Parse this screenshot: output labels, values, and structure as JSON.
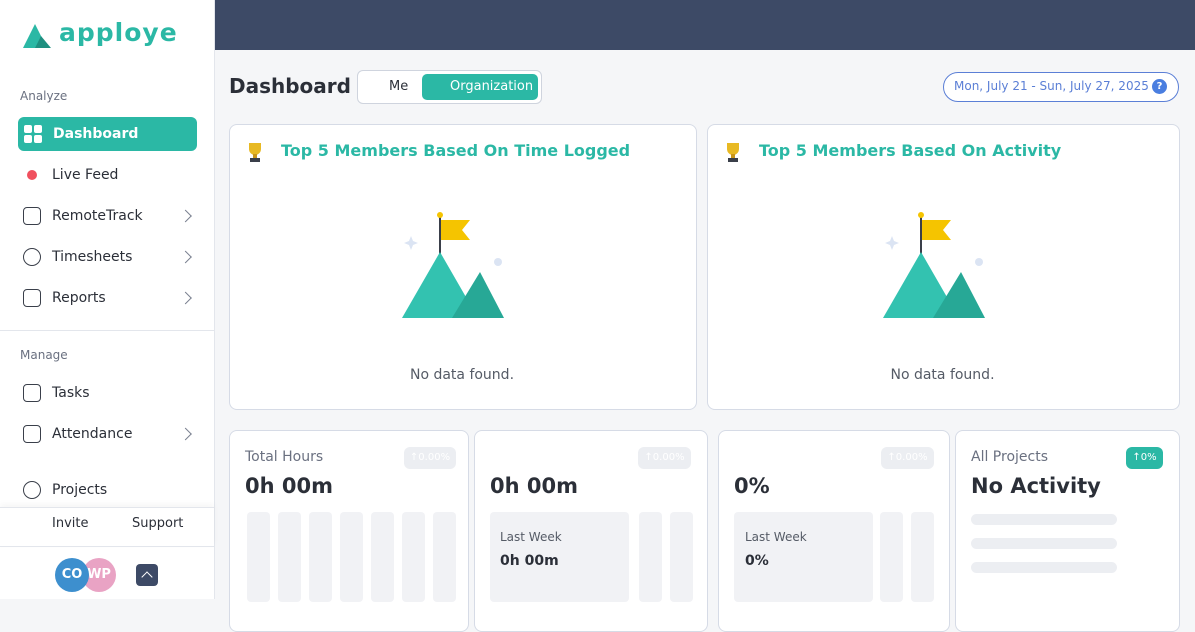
{
  "brand": "apploye",
  "sidebar": {
    "sections": [
      {
        "title": "Analyze",
        "items": [
          "Dashboard",
          "Live Feed",
          "RemoteTrack",
          "Timesheets",
          "Reports"
        ]
      },
      {
        "title": "Manage",
        "items": [
          "Tasks",
          "Attendance",
          "Projects"
        ]
      }
    ],
    "footer": [
      "Invite",
      "Support"
    ],
    "avatars": [
      "CO",
      "WP"
    ]
  },
  "header": {
    "title": "Dashboard",
    "toggle": [
      "Me",
      "Organization"
    ],
    "date_range": "Mon, July 21 - Sun, July 27, 2025",
    "help": "?"
  },
  "panels": [
    {
      "title": "Top 5 Members Based On Time Logged",
      "empty": "No data found."
    },
    {
      "title": "Top 5 Members Based On Activity",
      "empty": "No data found."
    }
  ],
  "cards": [
    {
      "label": "Total Hours",
      "badge": "0.00%",
      "value": "0h 00m"
    },
    {
      "badge": "0.00%",
      "value": "0h 00m",
      "sub_label": "Last Week",
      "sub_value": "0h 00m"
    },
    {
      "badge": "0.00%",
      "value": "0%",
      "sub_label": "Last Week",
      "sub_value": "0%"
    },
    {
      "label": "All Projects",
      "badge": "0%",
      "value": "No Activity"
    }
  ]
}
